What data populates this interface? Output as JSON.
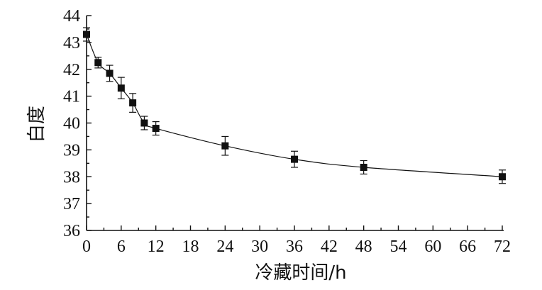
{
  "chart_data": {
    "type": "scatter",
    "title": "",
    "xlabel": "冷藏时间/h",
    "ylabel": "白度",
    "xlim": [
      0,
      72
    ],
    "ylim": [
      36,
      44
    ],
    "x_ticks": [
      0,
      6,
      12,
      18,
      24,
      30,
      36,
      42,
      48,
      54,
      60,
      66,
      72
    ],
    "y_ticks": [
      36,
      37,
      38,
      39,
      40,
      41,
      42,
      43,
      44
    ],
    "grid": false,
    "legend": "none",
    "series": [
      {
        "x": [
          0,
          2,
          4,
          6,
          8,
          10,
          12,
          24,
          36,
          48,
          72
        ],
        "y": [
          43.3,
          42.25,
          41.85,
          41.3,
          40.75,
          40.0,
          39.8,
          39.15,
          38.65,
          38.35,
          38.0
        ],
        "error": [
          0.25,
          0.2,
          0.3,
          0.4,
          0.35,
          0.25,
          0.25,
          0.35,
          0.3,
          0.25,
          0.25
        ],
        "fit_line": "smooth",
        "marker": "filled-square",
        "color": "#111111"
      }
    ]
  }
}
